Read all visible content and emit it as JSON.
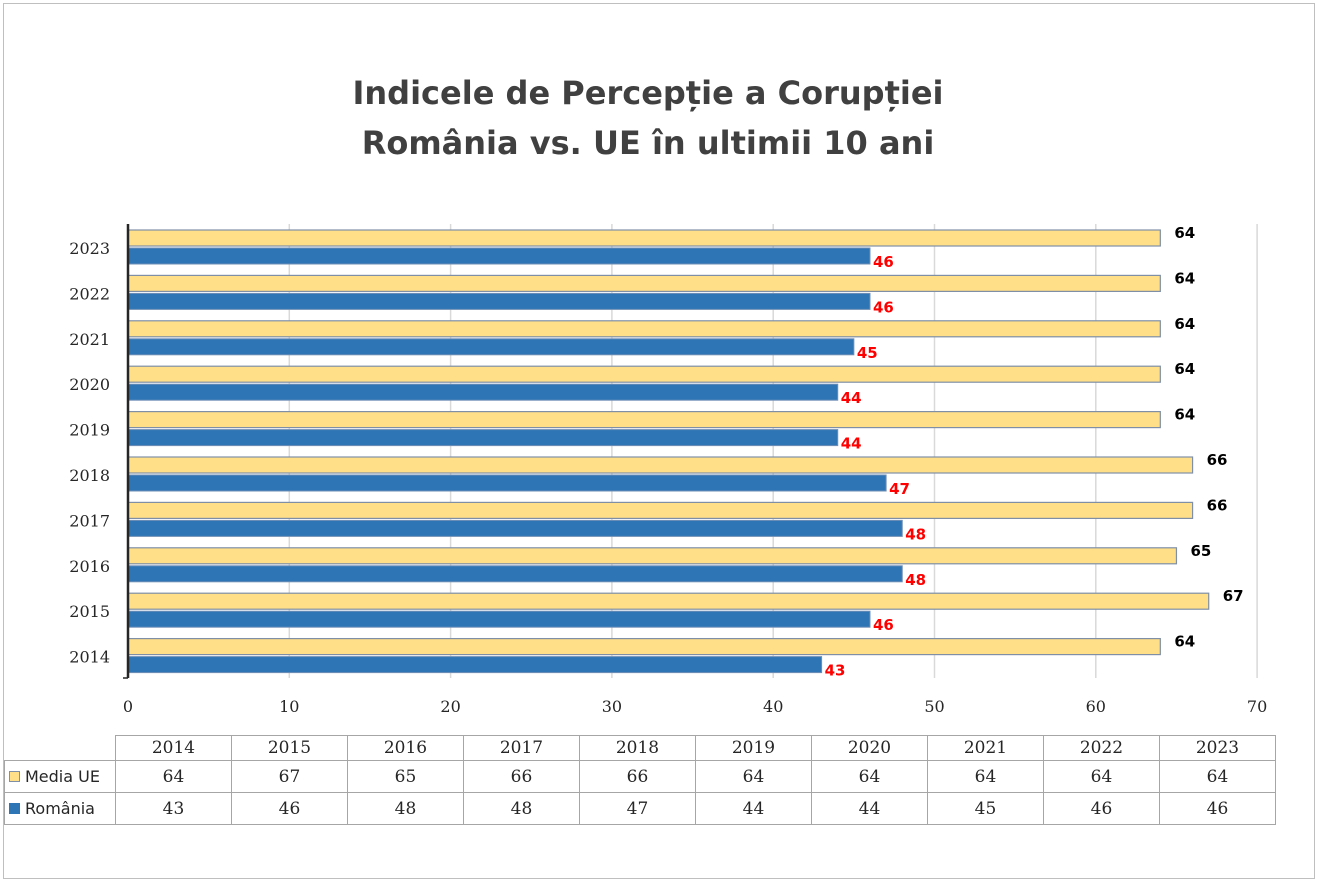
{
  "chart_data": {
    "type": "bar",
    "orientation": "horizontal",
    "title": "Indicele de Percepție a Corupției",
    "subtitle": "România vs. UE în ultimii 10 ani",
    "categories": [
      "2014",
      "2015",
      "2016",
      "2017",
      "2018",
      "2019",
      "2020",
      "2021",
      "2022",
      "2023"
    ],
    "series": [
      {
        "name": "Media UE",
        "values": [
          64,
          67,
          65,
          66,
          66,
          64,
          64,
          64,
          64,
          64
        ],
        "color": "#ffdf88",
        "label_color": "#000000"
      },
      {
        "name": "România",
        "values": [
          43,
          46,
          48,
          48,
          47,
          44,
          44,
          45,
          46,
          46
        ],
        "color": "#2e75b6",
        "label_color": "#ff0000"
      }
    ],
    "x_ticks": [
      "0",
      "10",
      "20",
      "30",
      "40",
      "50",
      "60",
      "70"
    ],
    "xlim": [
      0,
      70
    ],
    "grid": true,
    "data_table": true
  }
}
